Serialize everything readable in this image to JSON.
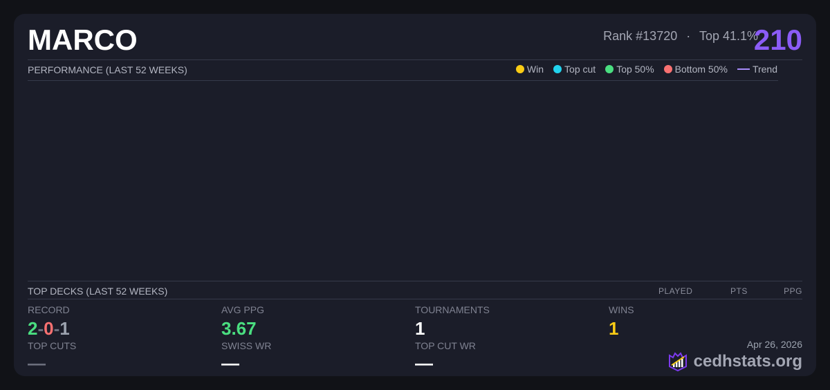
{
  "player": {
    "name": "MARCO",
    "rank": "Rank #13720",
    "separator": "·",
    "top_percent": "Top 41.1%",
    "score": "210"
  },
  "performance": {
    "title": "PERFORMANCE (LAST 52 WEEKS)",
    "legend": [
      {
        "label": "Win",
        "color": "#facc15"
      },
      {
        "label": "Top cut",
        "color": "#22d3ee"
      },
      {
        "label": "Top 50%",
        "color": "#4ade80"
      },
      {
        "label": "Bottom 50%",
        "color": "#f87171"
      },
      {
        "label": "Trend",
        "color": "#a78bfa"
      }
    ]
  },
  "top_decks": {
    "title": "TOP DECKS (LAST 52 WEEKS)",
    "columns": [
      "PLAYED",
      "PTS",
      "PPG"
    ]
  },
  "stats": {
    "record": {
      "label": "RECORD",
      "wins": "2",
      "losses": "0",
      "draws": "1",
      "sep": "-"
    },
    "avg_ppg": {
      "label": "AVG PPG",
      "value": "3.67"
    },
    "tournaments": {
      "label": "TOURNAMENTS",
      "value": "1"
    },
    "wins": {
      "label": "WINS",
      "value": "1"
    },
    "top_cuts": {
      "label": "TOP CUTS",
      "value": "—"
    },
    "swiss_wr": {
      "label": "SWISS WR",
      "value": "—"
    },
    "top_cut_wr": {
      "label": "TOP CUT WR",
      "value": "—"
    }
  },
  "footer": {
    "date": "Apr 26, 2026",
    "brand": "cedhstats.org"
  }
}
